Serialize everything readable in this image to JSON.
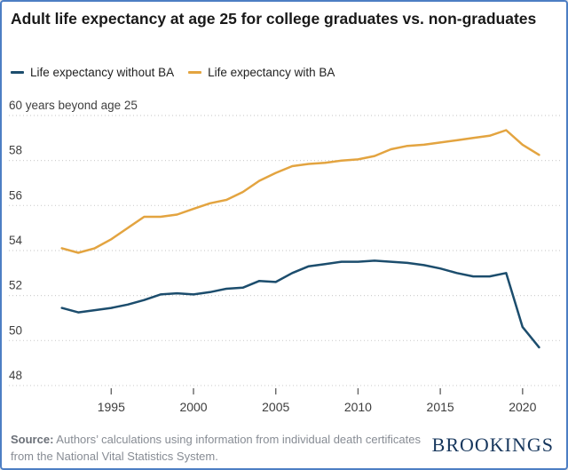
{
  "header": {
    "title": "Adult life expectancy at age 25 for college graduates vs. non-graduates"
  },
  "legend": [
    {
      "key": "without-ba",
      "label": "Life expectancy without BA",
      "color": "#1c4d6d"
    },
    {
      "key": "with-ba",
      "label": "Life expectancy with BA",
      "color": "#e3a440"
    }
  ],
  "chart_data": {
    "type": "line",
    "x": [
      1992,
      1993,
      1994,
      1995,
      1996,
      1997,
      1998,
      1999,
      2000,
      2001,
      2002,
      2003,
      2004,
      2005,
      2006,
      2007,
      2008,
      2009,
      2010,
      2011,
      2012,
      2013,
      2014,
      2015,
      2016,
      2017,
      2018,
      2019,
      2020,
      2021
    ],
    "series": [
      {
        "key": "without-ba",
        "name": "Life expectancy without BA",
        "color": "#1c4d6d",
        "values": [
          51.45,
          51.25,
          51.35,
          51.45,
          51.6,
          51.8,
          52.05,
          52.1,
          52.05,
          52.15,
          52.3,
          52.35,
          52.65,
          52.6,
          53.0,
          53.3,
          53.4,
          53.5,
          53.5,
          53.55,
          53.5,
          53.45,
          53.35,
          53.2,
          53.0,
          52.85,
          52.85,
          53.0,
          50.6,
          49.7
        ]
      },
      {
        "key": "with-ba",
        "name": "Life expectancy with BA",
        "color": "#e3a440",
        "values": [
          54.1,
          53.9,
          54.1,
          54.5,
          55.0,
          55.5,
          55.5,
          55.6,
          55.85,
          56.1,
          56.25,
          56.6,
          57.1,
          57.45,
          57.75,
          57.85,
          57.9,
          58.0,
          58.05,
          58.2,
          58.5,
          58.65,
          58.7,
          58.8,
          58.9,
          59.0,
          59.1,
          59.35,
          58.7,
          58.25
        ]
      }
    ],
    "y_axis": {
      "top_label": "60 years beyond age 25",
      "ticks": [
        60,
        58,
        56,
        54,
        52,
        50,
        48
      ],
      "range": [
        47.5,
        60.5
      ]
    },
    "x_axis": {
      "ticks": [
        1995,
        2000,
        2005,
        2010,
        2015,
        2020
      ],
      "range": [
        1992,
        2021
      ]
    },
    "grid": "horizontal-dotted",
    "title": "Adult life expectancy at age 25 for college graduates vs. non-graduates"
  },
  "footer": {
    "source_label": "Source:",
    "source_text": " Authors’ calculations using information from individual death certificates from the National Vital Statistics System.",
    "logo": "BROOKINGS"
  }
}
